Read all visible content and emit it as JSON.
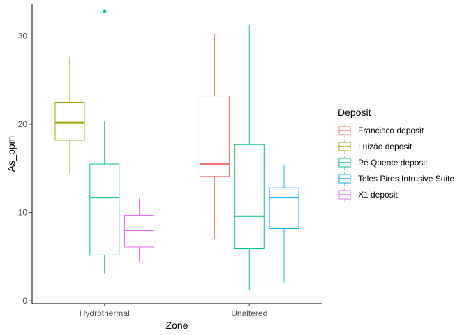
{
  "chart_data": {
    "type": "boxplot",
    "xlabel": "Zone",
    "ylabel": "As_ppm",
    "categories": [
      "Hydrothermal",
      "Unaltered"
    ],
    "ylim": [
      -0.3,
      33.6
    ],
    "yticks": [
      0,
      10,
      20,
      30
    ],
    "grid": false,
    "legend": {
      "title": "Deposit",
      "position": "right",
      "entries": [
        "Francisco deposit",
        "Luizão deposit",
        "Pé Quente deposit",
        "Teles Pires Intrusive Suite",
        "X1 deposit"
      ]
    },
    "series": [
      {
        "name": "Francisco deposit",
        "color": "#F8766D",
        "boxes": [
          {
            "category": "Unaltered",
            "min": 7.1,
            "q1": 14.1,
            "median": 15.5,
            "q3": 23.2,
            "max": 30.2,
            "outliers": []
          }
        ]
      },
      {
        "name": "Luizão deposit",
        "color": "#A3A500",
        "boxes": [
          {
            "category": "Hydrothermal",
            "min": 14.4,
            "q1": 18.2,
            "median": 20.2,
            "q3": 22.5,
            "max": 27.6,
            "outliers": []
          }
        ]
      },
      {
        "name": "Pé Quente deposit",
        "color": "#00BF7D",
        "boxes": [
          {
            "category": "Hydrothermal",
            "min": 3.1,
            "q1": 5.2,
            "median": 11.7,
            "q3": 15.5,
            "max": 20.3,
            "outliers": [
              32.8
            ]
          },
          {
            "category": "Unaltered",
            "min": 1.2,
            "q1": 5.9,
            "median": 9.6,
            "q3": 17.7,
            "max": 31.2,
            "outliers": []
          }
        ]
      },
      {
        "name": "Teles Pires Intrusive Suite",
        "color": "#00B0F6",
        "boxes": [
          {
            "category": "Unaltered",
            "min": 2.1,
            "q1": 8.2,
            "median": 11.7,
            "q3": 12.8,
            "max": 15.4,
            "outliers": []
          }
        ]
      },
      {
        "name": "X1 deposit",
        "color": "#E76BF3",
        "boxes": [
          {
            "category": "Hydrothermal",
            "min": 4.4,
            "q1": 6.1,
            "median": 8.0,
            "q3": 9.7,
            "max": 11.7,
            "outliers": []
          }
        ]
      }
    ]
  }
}
